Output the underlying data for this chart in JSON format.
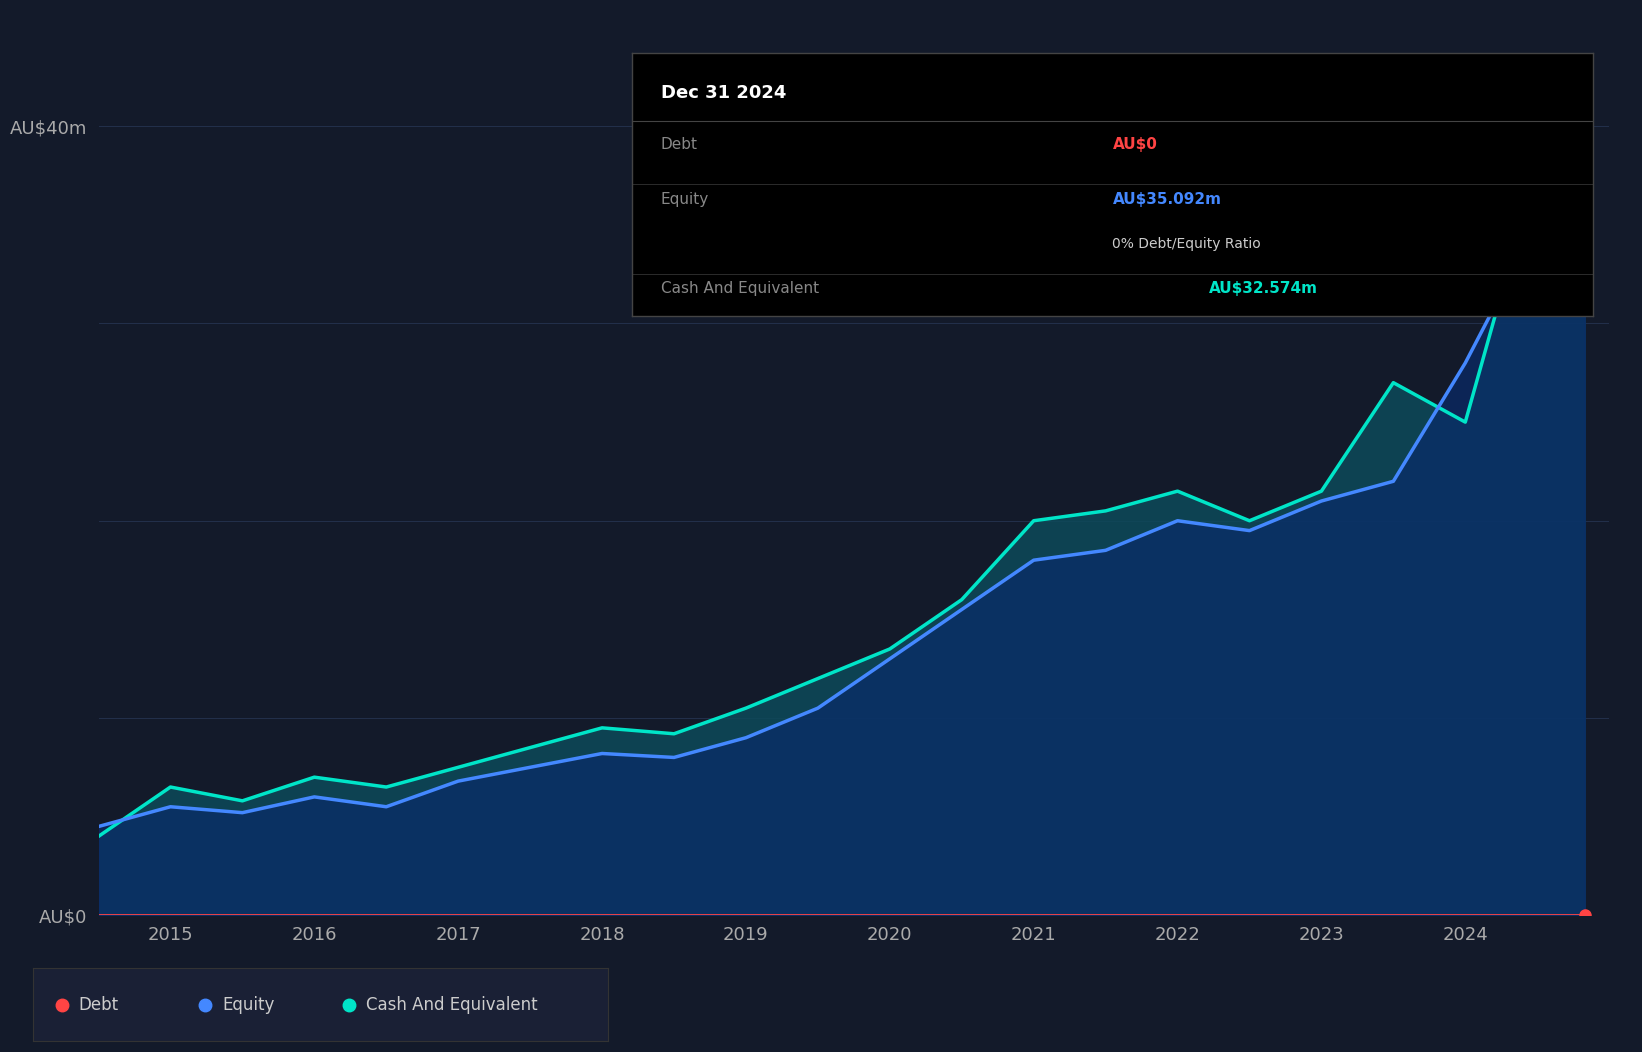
{
  "background_color": "#131a2a",
  "plot_bg_color": "#131a2a",
  "grid_color": "#2a3a5a",
  "ylabel_40": "AU$40m",
  "ylabel_0": "AU$0",
  "ylim": [
    0,
    40
  ],
  "debt_color": "#ff4444",
  "equity_color": "#4488ff",
  "cash_color": "#00e5c8",
  "fill_cash_color": "#0d4a5a",
  "fill_equity_color": "#0a2a6a",
  "legend_bg": "#1a2035",
  "tooltip_bg": "#000000",
  "tooltip_border": "#444444",
  "dates": [
    2014.5,
    2015.0,
    2015.5,
    2016.0,
    2016.5,
    2017.0,
    2017.5,
    2018.0,
    2018.5,
    2019.0,
    2019.5,
    2020.0,
    2020.5,
    2021.0,
    2021.5,
    2022.0,
    2022.5,
    2023.0,
    2023.5,
    2024.0,
    2024.5,
    2024.83
  ],
  "equity": [
    4.5,
    5.5,
    5.2,
    6.0,
    5.5,
    6.8,
    7.5,
    8.2,
    8.0,
    9.0,
    10.5,
    13.0,
    15.5,
    18.0,
    18.5,
    20.0,
    19.5,
    21.0,
    22.0,
    28.0,
    35.0,
    35.092
  ],
  "cash": [
    4.0,
    6.5,
    5.8,
    7.0,
    6.5,
    7.5,
    8.5,
    9.5,
    9.2,
    10.5,
    12.0,
    13.5,
    16.0,
    20.0,
    20.5,
    21.5,
    20.0,
    21.5,
    27.0,
    25.0,
    38.0,
    32.574
  ],
  "debt": [
    0,
    0,
    0,
    0,
    0,
    0,
    0,
    0,
    0,
    0,
    0,
    0,
    0,
    0,
    0,
    0,
    0,
    0,
    0,
    0,
    0,
    0
  ],
  "xlim": [
    2014.5,
    2025.0
  ],
  "xticks": [
    2015,
    2016,
    2017,
    2018,
    2019,
    2020,
    2021,
    2022,
    2023,
    2024
  ],
  "xtick_labels": [
    "2015",
    "2016",
    "2017",
    "2018",
    "2019",
    "2020",
    "2021",
    "2022",
    "2023",
    "2024"
  ],
  "tooltip_date": "Dec 31 2024",
  "tooltip_debt_label": "Debt",
  "tooltip_debt_val": "AU$0",
  "tooltip_equity_label": "Equity",
  "tooltip_equity_val": "AU$35.092m",
  "tooltip_ratio": "0% Debt/Equity Ratio",
  "tooltip_cash_label": "Cash And Equivalent",
  "tooltip_cash_val": "AU$32.574m",
  "legend_items": [
    "Debt",
    "Equity",
    "Cash And Equivalent"
  ]
}
